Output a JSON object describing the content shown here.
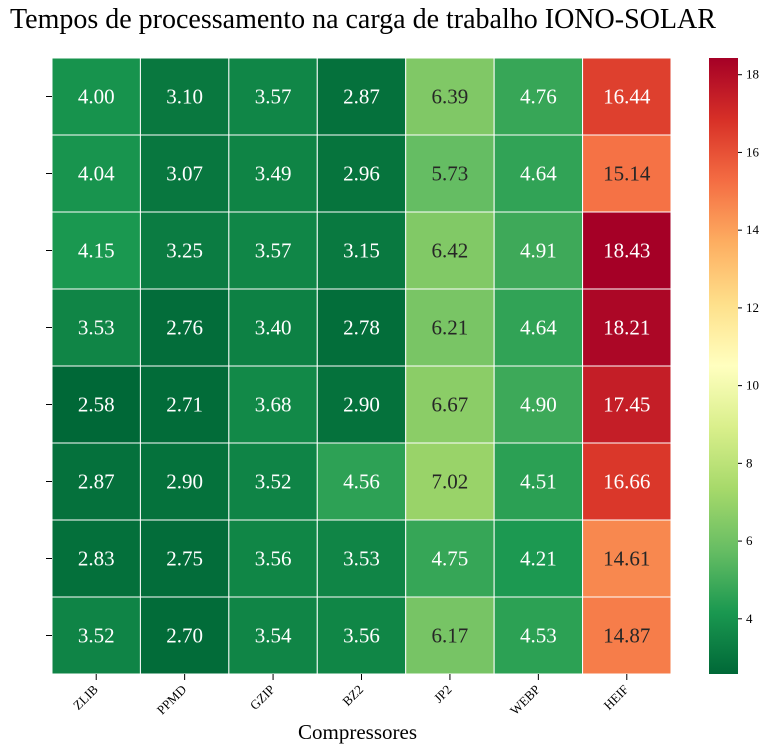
{
  "chart_data": {
    "type": "heatmap",
    "title": "Tempos de processamento na carga de trabalho IONO-SOLAR",
    "xlabel": "Compressores",
    "ylabel": "",
    "categories": [
      "ZLIB",
      "PPMD",
      "GZIP",
      "BZ2",
      "JP2",
      "WEBP",
      "HEIF"
    ],
    "rows": [
      [
        4.0,
        3.1,
        3.57,
        2.87,
        6.39,
        4.76,
        16.44
      ],
      [
        4.04,
        3.07,
        3.49,
        2.96,
        5.73,
        4.64,
        15.14
      ],
      [
        4.15,
        3.25,
        3.57,
        3.15,
        6.42,
        4.91,
        18.43
      ],
      [
        3.53,
        2.76,
        3.4,
        2.78,
        6.21,
        4.64,
        18.21
      ],
      [
        2.58,
        2.71,
        3.68,
        2.9,
        6.67,
        4.9,
        17.45
      ],
      [
        2.87,
        2.9,
        3.52,
        4.56,
        7.02,
        4.51,
        16.66
      ],
      [
        2.83,
        2.75,
        3.56,
        3.53,
        4.75,
        4.21,
        14.61
      ],
      [
        3.52,
        2.7,
        3.54,
        3.56,
        6.17,
        4.53,
        14.87
      ]
    ],
    "colormap": "RdYlGn_r",
    "vmin": 2.58,
    "vmax": 18.43,
    "colorbar_ticks": [
      4,
      6,
      8,
      10,
      12,
      14,
      16,
      18
    ],
    "annotations": true,
    "value_format": "0.00",
    "legend": "colorbar-right"
  }
}
